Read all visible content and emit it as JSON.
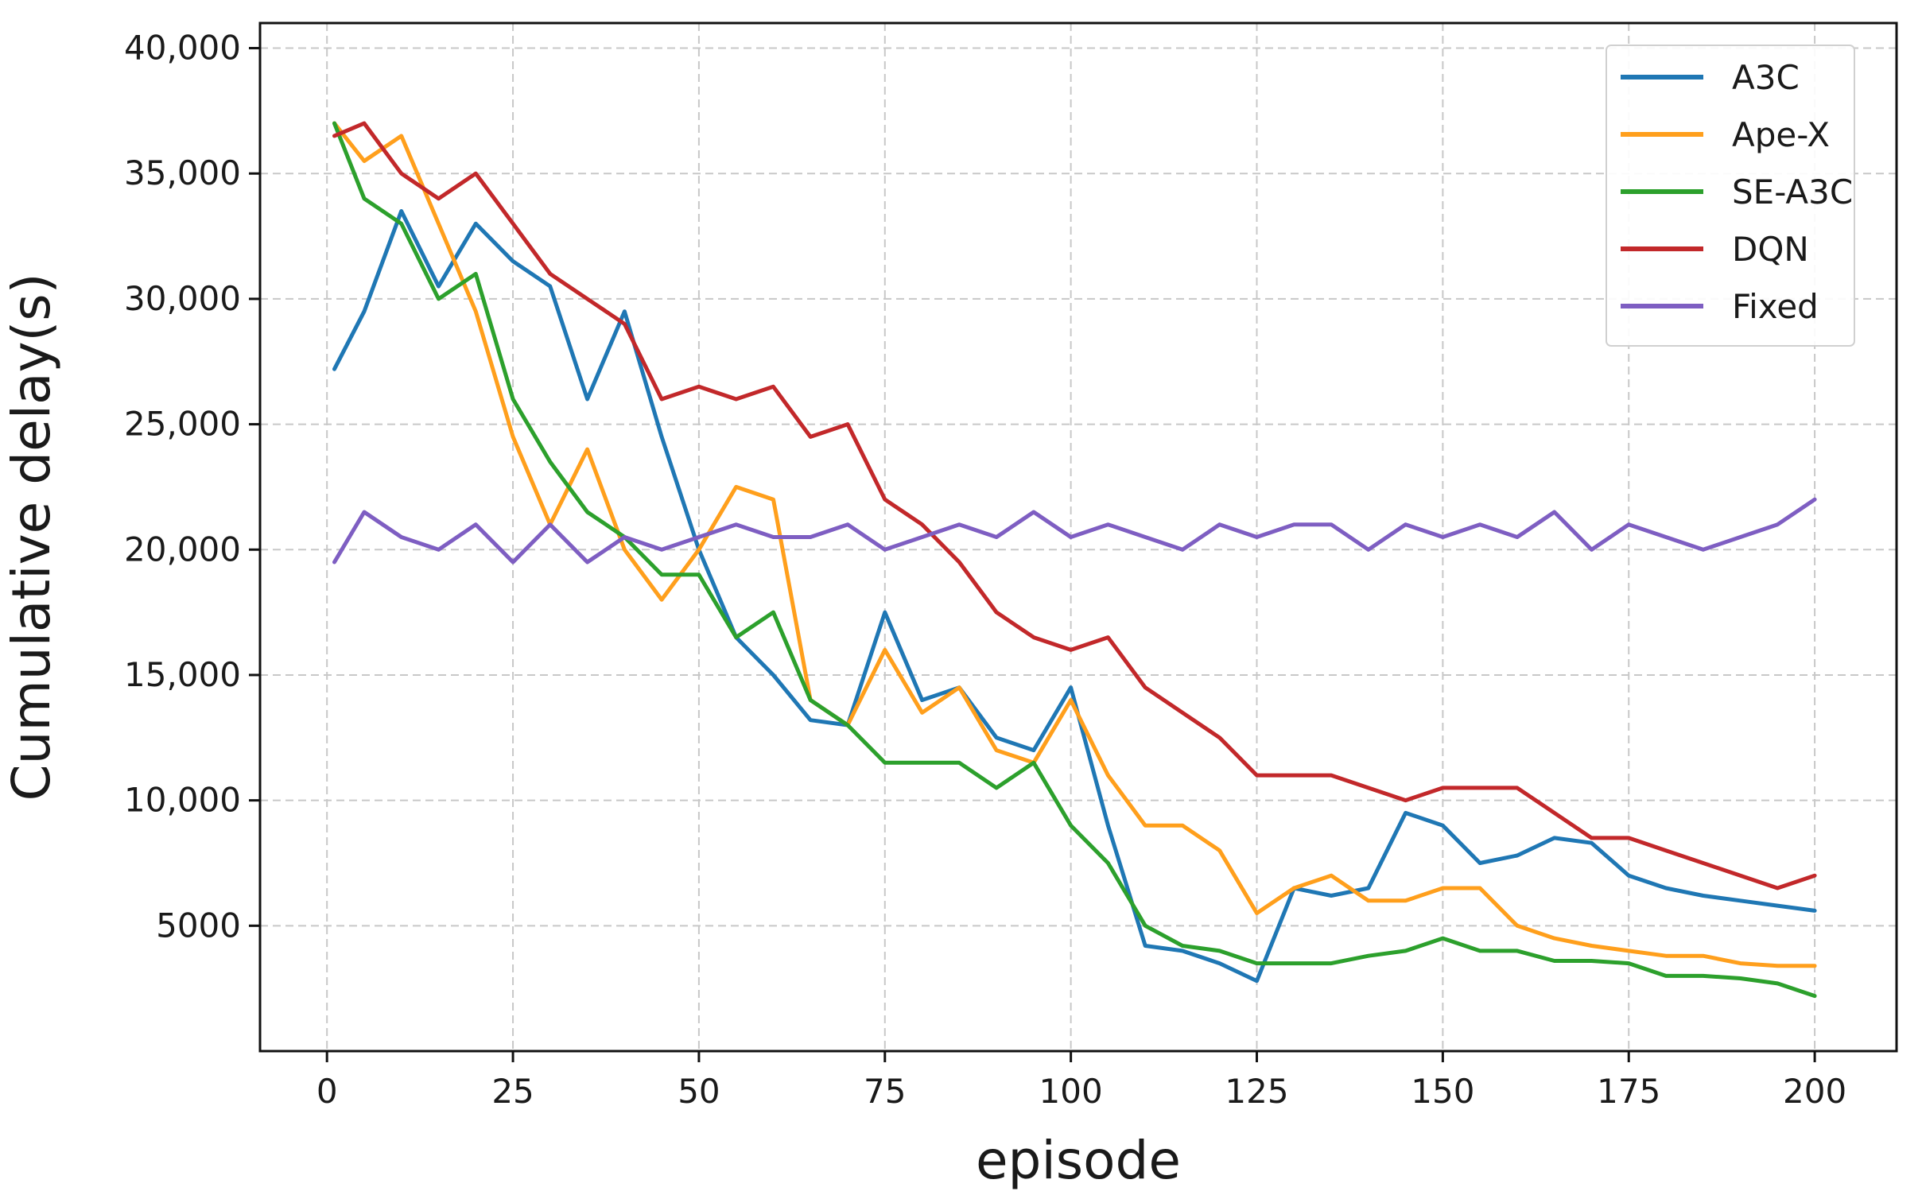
{
  "chart_data": {
    "type": "line",
    "title": "",
    "xlabel": "episode",
    "ylabel": "Cumulative delay(s)",
    "xlim": [
      -9,
      211
    ],
    "ylim": [
      0,
      41000
    ],
    "x_ticks": [
      0,
      25,
      50,
      75,
      100,
      125,
      150,
      175,
      200
    ],
    "x_tick_labels": [
      "0",
      "25",
      "50",
      "75",
      "100",
      "125",
      "150",
      "175",
      "200"
    ],
    "y_ticks": [
      5000,
      10000,
      15000,
      20000,
      25000,
      30000,
      35000,
      40000
    ],
    "y_tick_labels": [
      "5000",
      "10,000",
      "15,000",
      "20,000",
      "25,000",
      "30,000",
      "35,000",
      "40,000"
    ],
    "grid": true,
    "legend_position": "top-right",
    "x": [
      1,
      5,
      10,
      15,
      20,
      25,
      30,
      35,
      40,
      45,
      50,
      55,
      60,
      65,
      70,
      75,
      80,
      85,
      90,
      95,
      100,
      105,
      110,
      115,
      120,
      125,
      130,
      135,
      140,
      145,
      150,
      155,
      160,
      165,
      170,
      175,
      180,
      185,
      190,
      195,
      200
    ],
    "series": [
      {
        "name": "A3C",
        "color": "#1f77b4",
        "values": [
          27200,
          29500,
          33500,
          30500,
          33000,
          31500,
          30500,
          26000,
          29500,
          24500,
          20000,
          16500,
          15000,
          13200,
          13000,
          17500,
          14000,
          14500,
          12500,
          12000,
          14500,
          9000,
          4200,
          4000,
          3500,
          2800,
          6500,
          6200,
          6500,
          9500,
          9000,
          7500,
          7800,
          8500,
          8300,
          7000,
          6500,
          6200,
          6000,
          5800,
          5600
        ]
      },
      {
        "name": "Ape-X",
        "color": "#ff9f1c",
        "values": [
          37000,
          35500,
          36500,
          33000,
          29500,
          24500,
          21000,
          24000,
          20000,
          18000,
          20000,
          22500,
          22000,
          14000,
          13000,
          16000,
          13500,
          14500,
          12000,
          11500,
          14000,
          11000,
          9000,
          9000,
          8000,
          5500,
          6500,
          7000,
          6000,
          6000,
          6500,
          6500,
          5000,
          4500,
          4200,
          4000,
          3800,
          3800,
          3500,
          3400,
          3400
        ]
      },
      {
        "name": "SE-A3C",
        "color": "#2ca02c",
        "values": [
          37000,
          34000,
          33000,
          30000,
          31000,
          26000,
          23500,
          21500,
          20500,
          19000,
          19000,
          16500,
          17500,
          14000,
          13000,
          11500,
          11500,
          11500,
          10500,
          11500,
          9000,
          7500,
          5000,
          4200,
          4000,
          3500,
          3500,
          3500,
          3800,
          4000,
          4500,
          4000,
          4000,
          3600,
          3600,
          3500,
          3000,
          3000,
          2900,
          2700,
          2200
        ]
      },
      {
        "name": "DQN",
        "color": "#c2282a",
        "values": [
          36500,
          37000,
          35000,
          34000,
          35000,
          33000,
          31000,
          30000,
          29000,
          26000,
          26500,
          26000,
          26500,
          24500,
          25000,
          22000,
          21000,
          19500,
          17500,
          16500,
          16000,
          16500,
          14500,
          13500,
          12500,
          11000,
          11000,
          11000,
          10500,
          10000,
          10500,
          10500,
          10500,
          9500,
          8500,
          8500,
          8000,
          7500,
          7000,
          6500,
          7000
        ]
      },
      {
        "name": "Fixed",
        "color": "#7e5ec2",
        "values": [
          19500,
          21500,
          20500,
          20000,
          21000,
          19500,
          21000,
          19500,
          20500,
          20000,
          20500,
          21000,
          20500,
          20500,
          21000,
          20000,
          20500,
          21000,
          20500,
          21500,
          20500,
          21000,
          20500,
          20000,
          21000,
          20500,
          21000,
          21000,
          20000,
          21000,
          20500,
          21000,
          20500,
          21500,
          20000,
          21000,
          20500,
          20000,
          20500,
          21000,
          22000
        ]
      }
    ]
  }
}
